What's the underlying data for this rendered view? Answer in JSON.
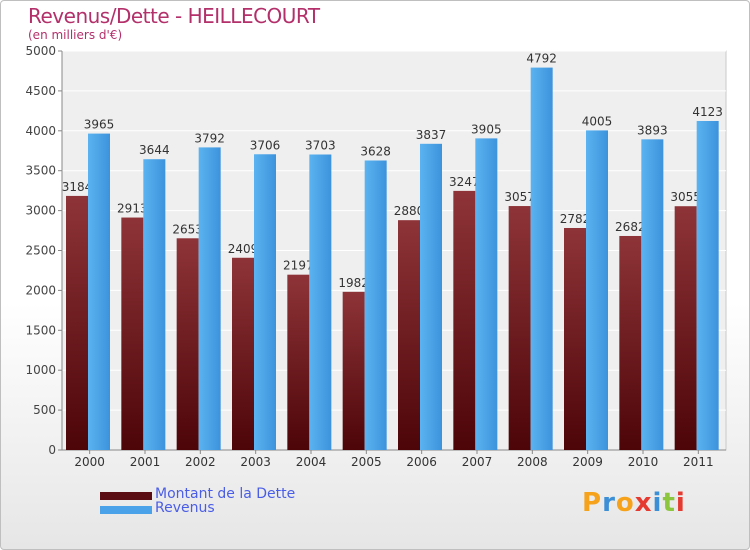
{
  "chart_data": {
    "type": "bar",
    "title": "Revenus/Dette - HEILLECOURT",
    "subtitle": "(en milliers d'€)",
    "categories": [
      "2000",
      "2001",
      "2002",
      "2003",
      "2004",
      "2005",
      "2006",
      "2007",
      "2008",
      "2009",
      "2010",
      "2011"
    ],
    "series": [
      {
        "name": "Montant de la Dette",
        "color": "#7a1f24",
        "values": [
          3184,
          2913,
          2653,
          2409,
          2197,
          1982,
          2880,
          3247,
          3057,
          2782,
          2682,
          3055
        ]
      },
      {
        "name": "Revenus",
        "color": "#4aa3e8",
        "values": [
          3965,
          3644,
          3792,
          3706,
          3703,
          3628,
          3837,
          3905,
          4792,
          4005,
          3893,
          4123
        ]
      }
    ],
    "ylim": [
      0,
      5000
    ],
    "yticks": [
      0,
      500,
      1000,
      1500,
      2000,
      2500,
      3000,
      3500,
      4000,
      4500,
      5000
    ],
    "grid": true,
    "legend": "bottom-left"
  },
  "brand": {
    "letters": [
      "P",
      "r",
      "o",
      "x",
      "i",
      "t",
      "i"
    ],
    "colors": [
      "#f6a21b",
      "#3b8fd6",
      "#f6a21b",
      "#e53a2f",
      "#3b8fd6",
      "#8cc63f",
      "#e53a2f"
    ]
  }
}
